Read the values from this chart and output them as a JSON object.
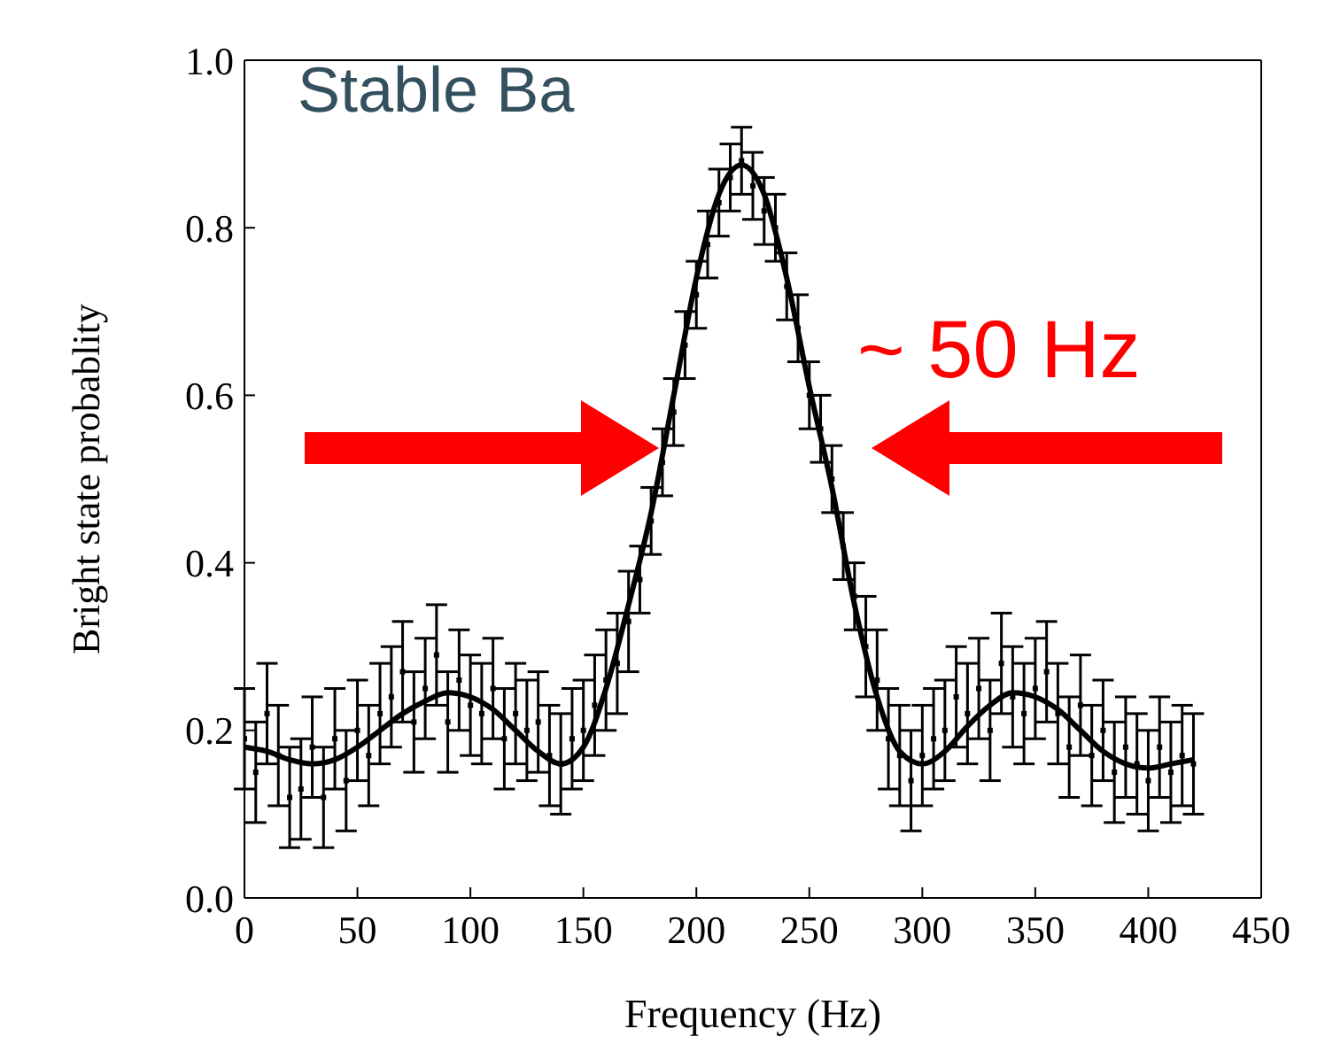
{
  "chart_data": {
    "type": "scatter",
    "xlabel": "Frequency (Hz)",
    "ylabel": "Bright state probablity",
    "annotations": [
      "Stable Ba",
      "~ 50 Hz"
    ],
    "xlim": [
      0,
      450
    ],
    "xticks": [
      0,
      50,
      100,
      150,
      200,
      250,
      300,
      350,
      400,
      450
    ],
    "ylim": [
      0,
      1
    ],
    "yticks": [
      {
        "value": 0,
        "label": "0.0"
      },
      {
        "value": 0.2,
        "label": "0.2"
      },
      {
        "value": 0.4,
        "label": "0.4"
      },
      {
        "value": 0.6,
        "label": "0.6"
      },
      {
        "value": 0.8,
        "label": "0.8"
      },
      {
        "value": 1,
        "label": "1.0"
      }
    ],
    "series": [
      {
        "color": "#000000",
        "x": [
          0,
          5,
          10,
          15,
          20,
          25,
          30,
          35,
          40,
          45,
          50,
          55,
          60,
          65,
          70,
          75,
          80,
          85,
          90,
          95,
          100,
          105,
          110,
          115,
          120,
          125,
          130,
          135,
          140,
          145,
          150,
          155,
          160,
          165,
          170,
          175,
          180,
          185,
          190,
          195,
          200,
          205,
          210,
          215,
          220,
          225,
          230,
          235,
          240,
          245,
          250,
          255,
          260,
          265,
          270,
          275,
          280,
          285,
          290,
          295,
          300,
          305,
          310,
          315,
          320,
          325,
          330,
          335,
          340,
          345,
          350,
          355,
          360,
          365,
          370,
          375,
          380,
          385,
          390,
          395,
          400,
          405,
          410,
          415,
          420
        ],
        "values": [
          0.19,
          0.15,
          0.22,
          0.17,
          0.12,
          0.13,
          0.18,
          0.12,
          0.19,
          0.14,
          0.2,
          0.17,
          0.22,
          0.24,
          0.27,
          0.21,
          0.25,
          0.29,
          0.21,
          0.26,
          0.23,
          0.22,
          0.25,
          0.19,
          0.22,
          0.2,
          0.21,
          0.17,
          0.16,
          0.19,
          0.2,
          0.23,
          0.26,
          0.28,
          0.33,
          0.38,
          0.45,
          0.52,
          0.58,
          0.66,
          0.72,
          0.78,
          0.83,
          0.86,
          0.88,
          0.85,
          0.82,
          0.8,
          0.73,
          0.68,
          0.6,
          0.56,
          0.5,
          0.42,
          0.36,
          0.3,
          0.26,
          0.19,
          0.17,
          0.14,
          0.17,
          0.19,
          0.2,
          0.24,
          0.22,
          0.25,
          0.2,
          0.28,
          0.24,
          0.22,
          0.25,
          0.27,
          0.22,
          0.18,
          0.23,
          0.17,
          0.2,
          0.15,
          0.18,
          0.16,
          0.14,
          0.18,
          0.15,
          0.17,
          0.16
        ],
        "errors": [
          0.06,
          0.06,
          0.06,
          0.06,
          0.06,
          0.06,
          0.06,
          0.06,
          0.06,
          0.06,
          0.06,
          0.06,
          0.06,
          0.06,
          0.06,
          0.06,
          0.06,
          0.06,
          0.06,
          0.06,
          0.06,
          0.06,
          0.06,
          0.06,
          0.06,
          0.06,
          0.06,
          0.06,
          0.06,
          0.06,
          0.06,
          0.06,
          0.06,
          0.06,
          0.06,
          0.04,
          0.04,
          0.04,
          0.04,
          0.04,
          0.04,
          0.04,
          0.04,
          0.04,
          0.04,
          0.04,
          0.04,
          0.04,
          0.04,
          0.04,
          0.04,
          0.04,
          0.04,
          0.04,
          0.04,
          0.06,
          0.06,
          0.06,
          0.06,
          0.06,
          0.06,
          0.06,
          0.06,
          0.06,
          0.06,
          0.06,
          0.06,
          0.06,
          0.06,
          0.06,
          0.06,
          0.06,
          0.06,
          0.06,
          0.06,
          0.06,
          0.06,
          0.06,
          0.06,
          0.06,
          0.06,
          0.06,
          0.06,
          0.06,
          0.06
        ]
      },
      {
        "type": "line",
        "color": "#000000",
        "x": [
          0,
          10,
          20,
          30,
          40,
          50,
          60,
          70,
          80,
          90,
          100,
          110,
          120,
          130,
          140,
          150,
          160,
          170,
          180,
          190,
          200,
          210,
          220,
          230,
          240,
          250,
          260,
          270,
          280,
          290,
          300,
          310,
          320,
          330,
          340,
          350,
          360,
          370,
          380,
          390,
          400,
          410,
          420
        ],
        "values": [
          0.18,
          0.175,
          0.165,
          0.16,
          0.165,
          0.18,
          0.2,
          0.22,
          0.235,
          0.245,
          0.24,
          0.225,
          0.2,
          0.175,
          0.16,
          0.18,
          0.25,
          0.35,
          0.46,
          0.6,
          0.74,
          0.84,
          0.875,
          0.84,
          0.74,
          0.61,
          0.49,
          0.35,
          0.24,
          0.175,
          0.16,
          0.175,
          0.205,
          0.23,
          0.245,
          0.24,
          0.225,
          0.2,
          0.175,
          0.16,
          0.155,
          0.16,
          0.165
        ]
      }
    ]
  }
}
